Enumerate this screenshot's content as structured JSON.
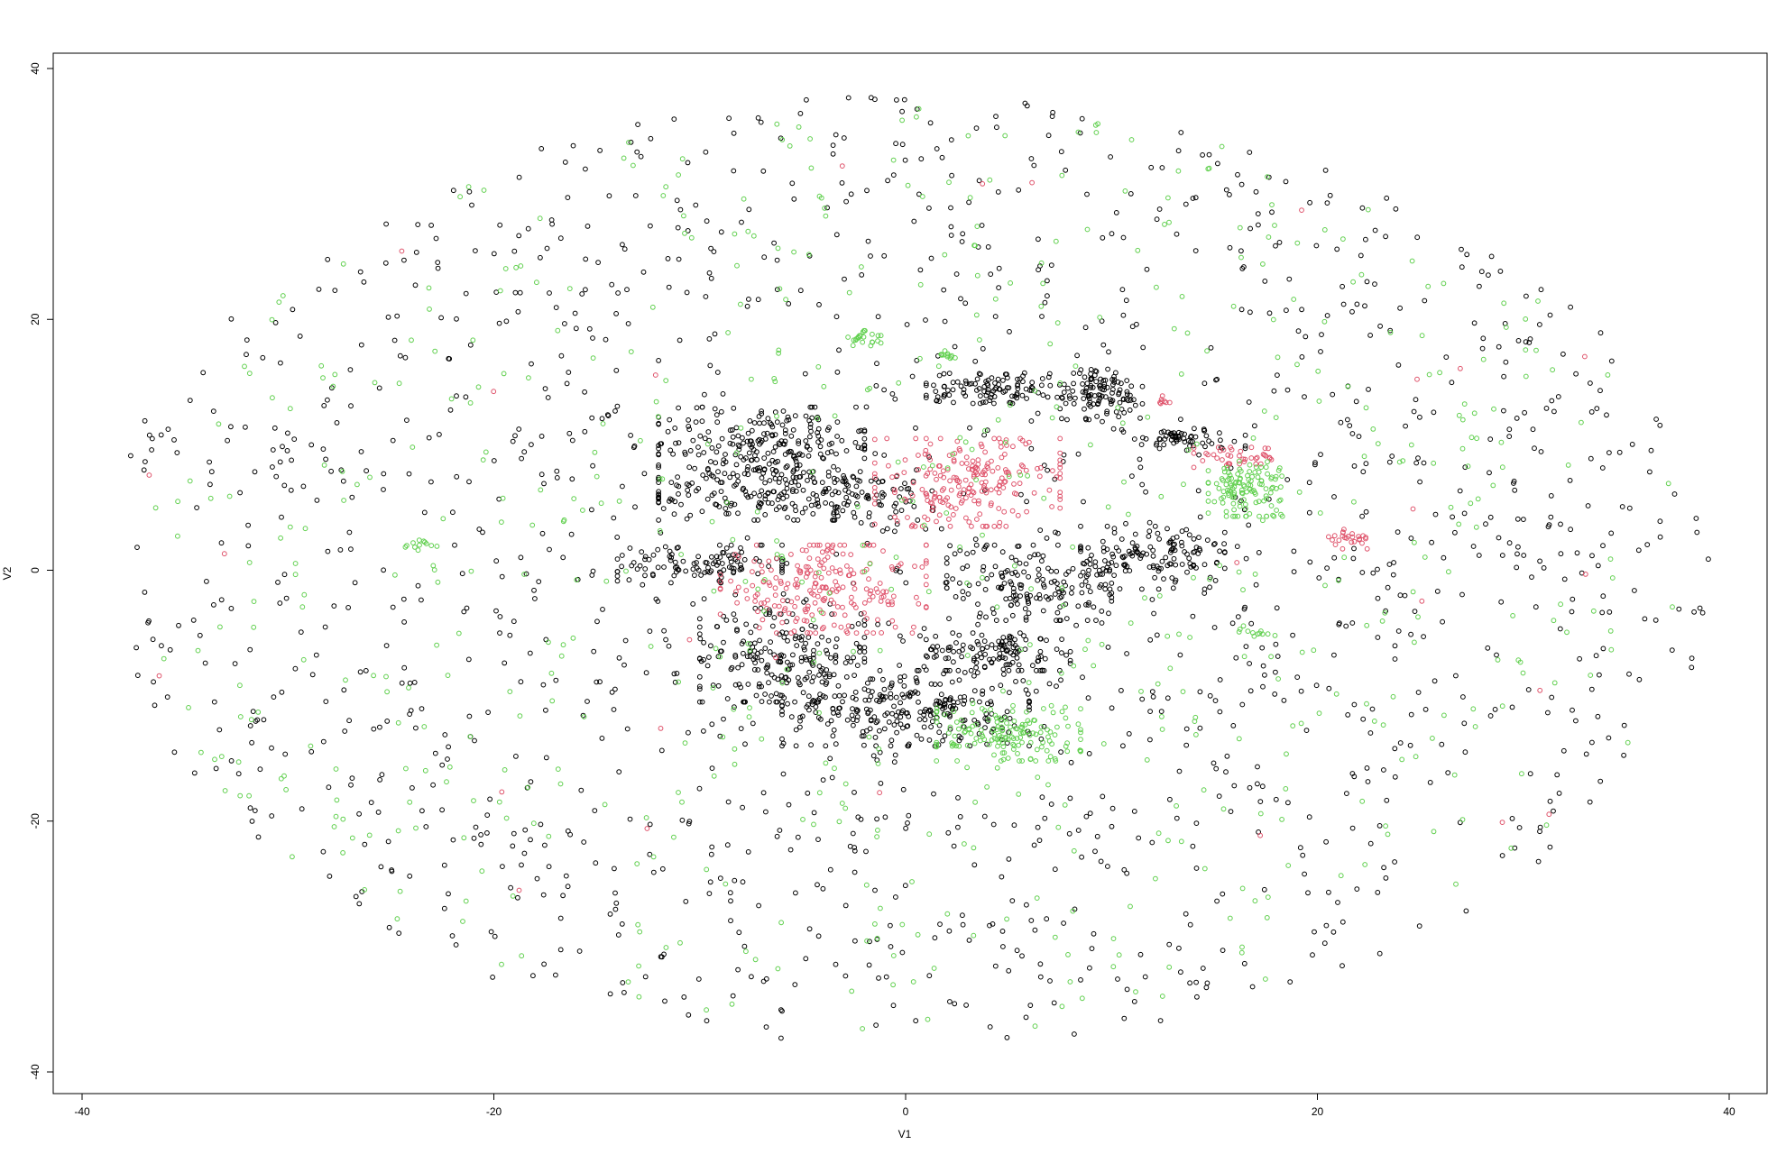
{
  "chart_data": {
    "type": "scatter",
    "title": "",
    "xlabel": "V1",
    "ylabel": "V2",
    "xlim": [
      -41,
      41
    ],
    "ylim": [
      -42,
      42
    ],
    "xticks": [
      -40,
      -20,
      0,
      20,
      40
    ],
    "yticks": [
      -40,
      -20,
      0,
      20,
      40
    ],
    "xtick_labels": [
      "-40",
      "-20",
      "0",
      "20",
      "40"
    ],
    "ytick_labels": [
      "-40",
      "-20",
      "0",
      "20",
      "40"
    ],
    "marker": "open-circle",
    "grid": false,
    "legend": "none",
    "series": [
      {
        "color": "#000000",
        "clusters": [
          {
            "cx": -7,
            "cy": 10,
            "rx": 5,
            "ry": 3,
            "n": 220
          },
          {
            "cx": -5,
            "cy": 6,
            "rx": 7,
            "ry": 2,
            "n": 220
          },
          {
            "cx": -6,
            "cy": -7,
            "rx": 4,
            "ry": 3.5,
            "n": 180
          },
          {
            "cx": 0,
            "cy": -11,
            "rx": 6,
            "ry": 3,
            "n": 260
          },
          {
            "cx": 6,
            "cy": -1,
            "rx": 4,
            "ry": 3,
            "n": 160
          },
          {
            "cx": 12,
            "cy": 1,
            "rx": 3.5,
            "ry": 2.5,
            "n": 140
          },
          {
            "cx": 5,
            "cy": 14.5,
            "rx": 4,
            "ry": 1.2,
            "n": 120
          },
          {
            "cx": 9.5,
            "cy": 14,
            "rx": 2,
            "ry": 2,
            "n": 90
          },
          {
            "cx": 4.5,
            "cy": -6.5,
            "rx": 3.5,
            "ry": 1.5,
            "n": 120
          },
          {
            "cx": -10,
            "cy": 0.5,
            "rx": 4,
            "ry": 1.5,
            "n": 110
          },
          {
            "cx": 13.5,
            "cy": 10.5,
            "rx": 3,
            "ry": 0.8,
            "n": 60
          }
        ],
        "background": {
          "rx": 39,
          "ry": 38,
          "n": 1500
        }
      },
      {
        "color": "#DF536B",
        "clusters": [
          {
            "cx": 3,
            "cy": 7,
            "rx": 4.5,
            "ry": 3.5,
            "n": 220
          },
          {
            "cx": -4,
            "cy": -1.5,
            "rx": 5,
            "ry": 3.5,
            "n": 220
          },
          {
            "cx": 21.5,
            "cy": 2.5,
            "rx": 1,
            "ry": 0.8,
            "n": 25
          },
          {
            "cx": 16,
            "cy": 9,
            "rx": 2,
            "ry": 0.8,
            "n": 40
          },
          {
            "cx": 12.5,
            "cy": 13.5,
            "rx": 0.5,
            "ry": 0.4,
            "n": 8
          }
        ],
        "background": {
          "rx": 38,
          "ry": 36,
          "n": 30
        }
      },
      {
        "color": "#61D04F",
        "clusters": [
          {
            "cx": 16.5,
            "cy": 6.5,
            "rx": 1.8,
            "ry": 2.2,
            "n": 120
          },
          {
            "cx": 5,
            "cy": -13,
            "rx": 3.5,
            "ry": 2.2,
            "n": 150
          },
          {
            "cx": -2,
            "cy": 18.5,
            "rx": 0.8,
            "ry": 0.6,
            "n": 20
          },
          {
            "cx": 2,
            "cy": 17,
            "rx": 0.5,
            "ry": 0.5,
            "n": 12
          },
          {
            "cx": -23.5,
            "cy": 2,
            "rx": 0.8,
            "ry": 0.4,
            "n": 12
          },
          {
            "cx": 17,
            "cy": -5,
            "rx": 1,
            "ry": 0.6,
            "n": 12
          }
        ],
        "background": {
          "rx": 38,
          "ry": 37,
          "n": 650
        }
      }
    ]
  }
}
